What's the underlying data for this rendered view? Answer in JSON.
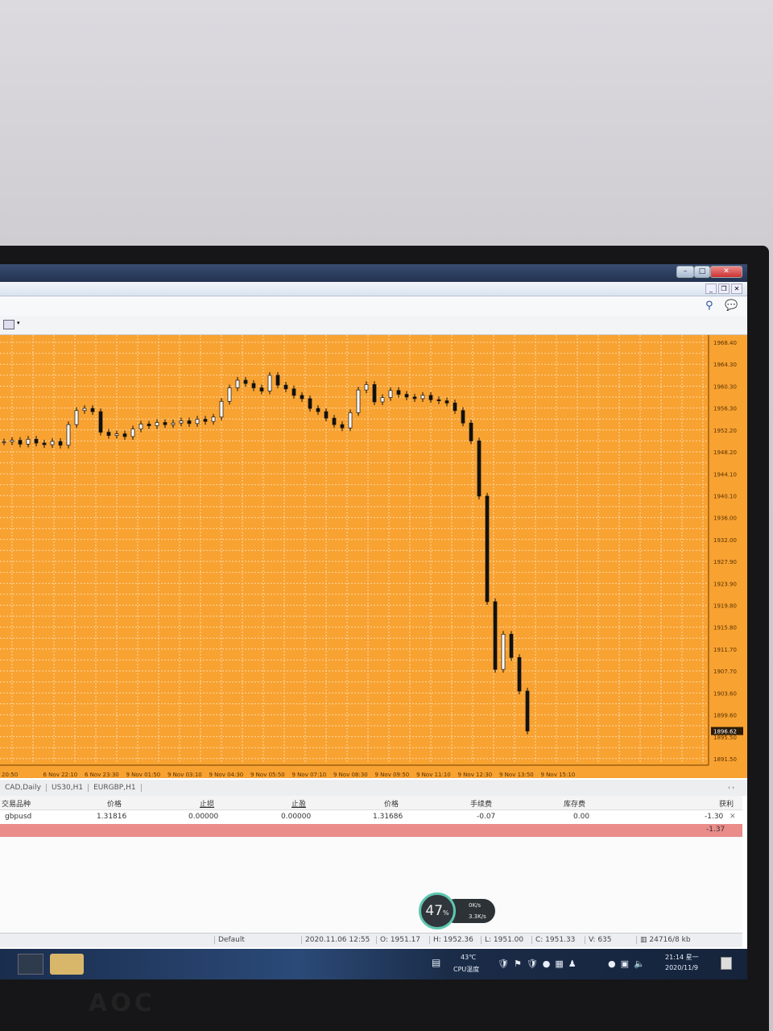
{
  "window": {
    "buttons": [
      "minimize",
      "maximize",
      "close"
    ],
    "inner_buttons": [
      "_",
      "❐",
      "✕"
    ]
  },
  "toolbar": {
    "icons": [
      "search-icon",
      "chat-icon",
      "chart-template-icon"
    ]
  },
  "chart": {
    "background": "#f8a232",
    "price_ticks": [
      "1968.40",
      "1964.30",
      "1960.30",
      "1956.30",
      "1952.20",
      "1948.20",
      "1944.10",
      "1940.10",
      "1936.00",
      "1932.00",
      "1927.90",
      "1923.90",
      "1919.80",
      "1915.80",
      "1911.70",
      "1907.70",
      "1903.60",
      "1899.60",
      "1895.50",
      "1891.50"
    ],
    "current_price": "1896.62",
    "time_ticks": [
      "20:50",
      "6 Nov 22:10",
      "6 Nov 23:30",
      "9 Nov 01:50",
      "9 Nov 03:10",
      "9 Nov 04:30",
      "9 Nov 05:50",
      "9 Nov 07:10",
      "9 Nov 08:30",
      "9 Nov 09:50",
      "9 Nov 11:10",
      "9 Nov 12:30",
      "9 Nov 13:50",
      "9 Nov 15:10"
    ]
  },
  "chart_data": {
    "type": "candlestick",
    "ylim": [
      1891.5,
      1968.4
    ],
    "grid": true,
    "closes": [
      1950.0,
      1950.3,
      1949.6,
      1950.5,
      1949.8,
      1949.5,
      1950.1,
      1949.4,
      1953.2,
      1955.8,
      1956.2,
      1955.6,
      1951.8,
      1951.2,
      1951.5,
      1951.0,
      1952.4,
      1953.3,
      1953.0,
      1953.6,
      1953.2,
      1953.5,
      1953.9,
      1953.4,
      1954.2,
      1953.8,
      1954.6,
      1957.5,
      1960.0,
      1961.4,
      1960.8,
      1960.0,
      1959.4,
      1962.3,
      1960.5,
      1959.8,
      1958.6,
      1958.0,
      1956.2,
      1955.6,
      1954.4,
      1953.2,
      1952.6,
      1955.4,
      1959.6,
      1960.6,
      1957.4,
      1958.2,
      1959.5,
      1958.8,
      1958.3,
      1958.0,
      1958.6,
      1957.8,
      1957.6,
      1957.2,
      1955.8,
      1953.5,
      1950.2,
      1940.0,
      1920.5,
      1908.0,
      1914.5,
      1910.2,
      1904.0,
      1896.62
    ]
  },
  "tabs": [
    "CAD,Daily",
    "US30,H1",
    "EURGBP,H1"
  ],
  "table": {
    "headers": [
      "交易品种",
      "价格",
      "止损",
      "止盈",
      "价格",
      "手续费",
      "库存费",
      "获利"
    ],
    "row": [
      "gbpusd",
      "1.31816",
      "0.00000",
      "0.00000",
      "1.31686",
      "-0.07",
      "0.00",
      "-1.30"
    ],
    "total": "-1.37"
  },
  "widget": {
    "percent": "47",
    "unit": "%",
    "up": "0K/s",
    "down": "3.3K/s"
  },
  "status": {
    "profile": "Default",
    "datetime": "2020.11.06 12:55",
    "open": "O: 1951.17",
    "high": "H: 1952.36",
    "low": "L: 1951.00",
    "close": "C: 1951.33",
    "volume": "V: 635",
    "traffic": "24716/8 kb"
  },
  "taskbar": {
    "temp": "43℃",
    "temp_label": "CPU温度",
    "time": "21:14 星一",
    "date": "2020/11/9"
  },
  "monitor_logo": "AOC"
}
